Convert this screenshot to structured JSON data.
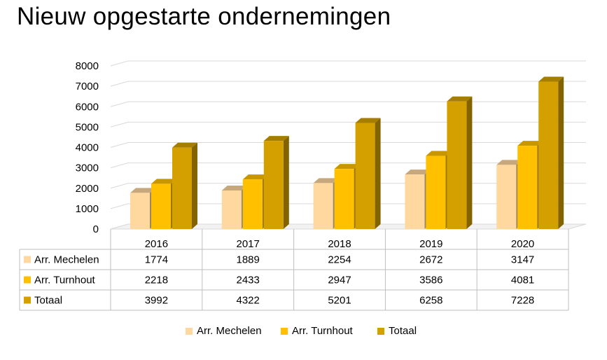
{
  "title": "Nieuw opgestarte ondernemingen",
  "chart_data": {
    "type": "bar",
    "style": "3d-clustered-column-with-data-table",
    "title": "Nieuw opgestarte ondernemingen",
    "categories": [
      "2016",
      "2017",
      "2018",
      "2019",
      "2020"
    ],
    "series": [
      {
        "name": "Arr. Mechelen",
        "color": "#FFD8A0",
        "values": [
          1774,
          1889,
          2254,
          2672,
          3147
        ]
      },
      {
        "name": "Arr. Turnhout",
        "color": "#FFC000",
        "values": [
          2218,
          2433,
          2947,
          3586,
          4081
        ]
      },
      {
        "name": "Totaal",
        "color": "#D4A000",
        "values": [
          3992,
          4322,
          5201,
          6258,
          7228
        ]
      }
    ],
    "y_ticks": [
      "0",
      "1000",
      "2000",
      "3000",
      "4000",
      "5000",
      "6000",
      "7000",
      "8000"
    ],
    "ylim": [
      0,
      8000
    ],
    "xlabel": "",
    "ylabel": "",
    "grid": true,
    "legend_position": "bottom"
  }
}
